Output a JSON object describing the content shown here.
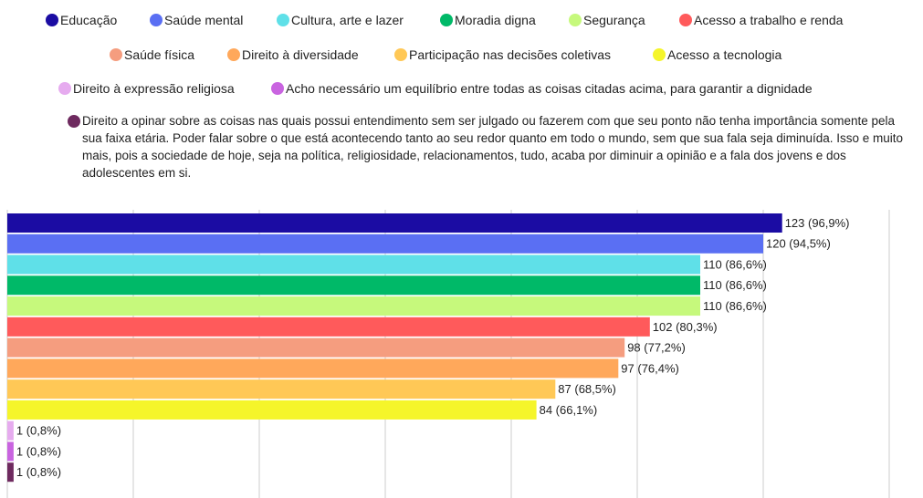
{
  "chart_data": {
    "type": "bar",
    "orientation": "horizontal",
    "categories": [
      "Educação",
      "Saúde mental",
      "Cultura, arte e lazer",
      "Moradia digna",
      "Segurança",
      "Acesso a trabalho e renda",
      "Saúde física",
      "Direito à diversidade",
      "Participação nas decisões coletivas",
      "Acesso a tecnologia",
      "Direito à expressão religiosa",
      "Acho necessário um equilíbrio entre todas as coisas citadas acima, para garantir a dignidade",
      "Direito a opinar sobre as coisas nas quais possui entendimento sem ser julgado ou fazerem com que seu ponto não tenha importância somente pela sua faixa etária. Poder falar sobre o que está acontecendo tanto ao seu redor quanto em todo o mundo, sem que sua fala seja diminuída. Isso e muito mais, pois a sociedade de hoje, seja na política, religiosidade, relacionamentos, tudo, acaba por diminuir a opinião e a fala dos jovens e dos adolescentes em si."
    ],
    "values": [
      123,
      120,
      110,
      110,
      110,
      102,
      98,
      97,
      87,
      84,
      1,
      1,
      1
    ],
    "value_labels": [
      "123 (96,9%)",
      "120 (94,5%)",
      "110 (86,6%)",
      "110 (86,6%)",
      "110 (86,6%)",
      "102 (80,3%)",
      "98 (77,2%)",
      "97 (76,4%)",
      "87 (68,5%)",
      "84 (66,1%)",
      "1 (0,8%)",
      "1 (0,8%)",
      "1 (0,8%)"
    ],
    "colors": [
      "#1b0ca3",
      "#5a6ff3",
      "#5fe0e8",
      "#00b968",
      "#c6f97c",
      "#ff5a5b",
      "#f59d7f",
      "#ffa85b",
      "#ffc856",
      "#f5f52a",
      "#e6abef",
      "#c964e0",
      "#6e2a5f"
    ],
    "xlim": [
      0,
      140
    ],
    "xticks": [
      0,
      20,
      40,
      60,
      80,
      100,
      120,
      140
    ],
    "grid": true
  }
}
